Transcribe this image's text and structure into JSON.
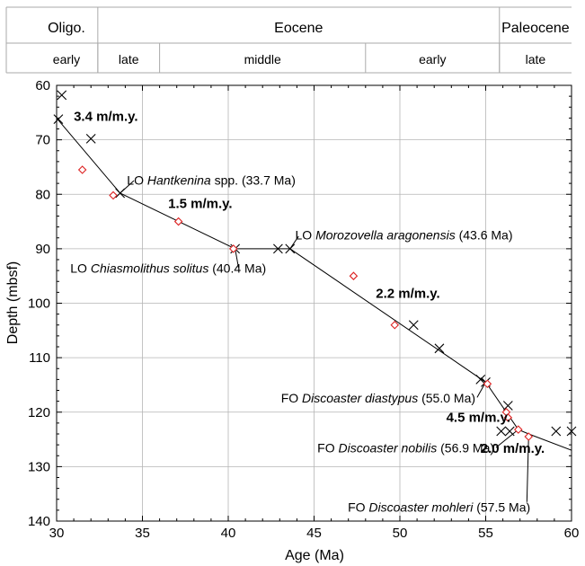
{
  "timescale": {
    "epochs": [
      {
        "label": "Oligo.",
        "from": 28.75,
        "to": 32.4
      },
      {
        "label": "Eocene",
        "from": 32.4,
        "to": 55.8
      },
      {
        "label": "Paleocene",
        "from": 55.8,
        "to": 60.0
      }
    ],
    "stages": [
      {
        "label": "early",
        "from": 28.75,
        "to": 32.4
      },
      {
        "label": "late",
        "from": 32.4,
        "to": 36.0
      },
      {
        "label": "middle",
        "from": 36.0,
        "to": 48.0
      },
      {
        "label": "early",
        "from": 48.0,
        "to": 55.8
      },
      {
        "label": "late",
        "from": 55.8,
        "to": 60.0
      }
    ]
  },
  "chart_data": {
    "type": "scatter",
    "title": "",
    "xlabel": "Age (Ma)",
    "ylabel": "Depth (mbsf)",
    "xlim": [
      30,
      60
    ],
    "ylim": [
      60,
      140
    ],
    "y_inverted": true,
    "xticks": [
      30,
      35,
      40,
      45,
      50,
      55,
      60
    ],
    "yticks": [
      60,
      70,
      80,
      90,
      100,
      110,
      120,
      130,
      140
    ],
    "grid": true,
    "colors": {
      "crosses": "#000000",
      "diamonds": "#dd2222",
      "line": "#000000"
    },
    "series": [
      {
        "marker": "x",
        "points": [
          [
            30.3,
            61.8
          ],
          [
            30.1,
            66.2
          ],
          [
            32.0,
            69.8
          ],
          [
            33.7,
            79.8
          ],
          [
            40.4,
            90.0
          ],
          [
            42.9,
            90.0
          ],
          [
            43.6,
            90.0
          ],
          [
            50.8,
            104.0
          ],
          [
            52.3,
            108.3
          ],
          [
            54.7,
            114.0
          ],
          [
            55.0,
            114.5
          ],
          [
            56.3,
            118.8
          ],
          [
            55.9,
            123.5
          ],
          [
            56.4,
            123.5
          ],
          [
            59.1,
            123.5
          ],
          [
            60.0,
            123.5
          ]
        ]
      },
      {
        "marker": "diamond",
        "points": [
          [
            31.5,
            75.5
          ],
          [
            33.3,
            80.2
          ],
          [
            37.1,
            85.0
          ],
          [
            40.3,
            90.0
          ],
          [
            47.3,
            95.0
          ],
          [
            49.7,
            104.0
          ],
          [
            55.1,
            114.8
          ],
          [
            56.2,
            120.0
          ],
          [
            56.3,
            121.0
          ],
          [
            56.9,
            123.2
          ],
          [
            57.5,
            124.5
          ]
        ]
      }
    ],
    "age_model": [
      [
        30.0,
        66.0
      ],
      [
        33.7,
        79.8
      ],
      [
        40.4,
        90.0
      ],
      [
        43.6,
        90.0
      ],
      [
        55.0,
        114.5
      ],
      [
        56.9,
        123.2
      ],
      [
        57.5,
        124.0
      ],
      [
        60.0,
        127.0
      ]
    ],
    "annotations": {
      "rates": [
        {
          "text": "3.4 m/m.y.",
          "x": 31.0,
          "y": 66.5
        },
        {
          "text": "1.5 m/m.y.",
          "x": 36.5,
          "y": 82.5
        },
        {
          "text": "2.2 m/m.y.",
          "x": 48.6,
          "y": 99.0
        },
        {
          "text": "4.5 m/m.y.",
          "x": 52.7,
          "y": 121.8
        },
        {
          "text": "2.0 m/m.y.",
          "x": 54.7,
          "y": 127.5
        }
      ],
      "datums": [
        {
          "prefix": "LO ",
          "taxon": "Hantkenina",
          "suffix": " spp. (33.7 Ma)",
          "label_x": 34.1,
          "label_y": 78.2,
          "anchor": "start",
          "lead": [
            [
              34.5,
              77.5
            ],
            [
              33.7,
              79.8
            ]
          ]
        },
        {
          "prefix": "LO ",
          "taxon": "Morozovella aragonensis",
          "suffix": " (43.6 Ma)",
          "label_x": 43.9,
          "label_y": 88.3,
          "anchor": "start",
          "lead": [
            [
              44.1,
              87.7
            ],
            [
              43.6,
              90.0
            ]
          ]
        },
        {
          "prefix": "LO ",
          "taxon": "Chiasmolithus solitus",
          "suffix": " (40.4 Ma)",
          "label_x": 30.8,
          "label_y": 94.4,
          "anchor": "start",
          "lead": [
            [
              40.6,
              93.5
            ],
            [
              40.4,
              90.0
            ]
          ]
        },
        {
          "prefix": "FO ",
          "taxon": "Discoaster diastypus",
          "suffix": " (55.0 Ma)",
          "label_x": 54.4,
          "label_y": 118.2,
          "anchor": "end",
          "lead": [
            [
              54.5,
              117.3
            ],
            [
              55.0,
              114.5
            ]
          ]
        },
        {
          "prefix": "FO ",
          "taxon": "Discoaster nobilis",
          "suffix": " (56.9 Ma)",
          "label_x": 55.5,
          "label_y": 127.4,
          "anchor": "end",
          "lead": [
            [
              55.6,
              126.5
            ],
            [
              56.9,
              123.2
            ]
          ]
        },
        {
          "prefix": "FO ",
          "taxon": "Discoaster mohleri",
          "suffix": " (57.5 Ma)",
          "label_x": 57.6,
          "label_y": 138.3,
          "anchor": "end",
          "lead": [
            [
              57.4,
              136.5
            ],
            [
              57.5,
              124.5
            ]
          ]
        }
      ]
    }
  }
}
